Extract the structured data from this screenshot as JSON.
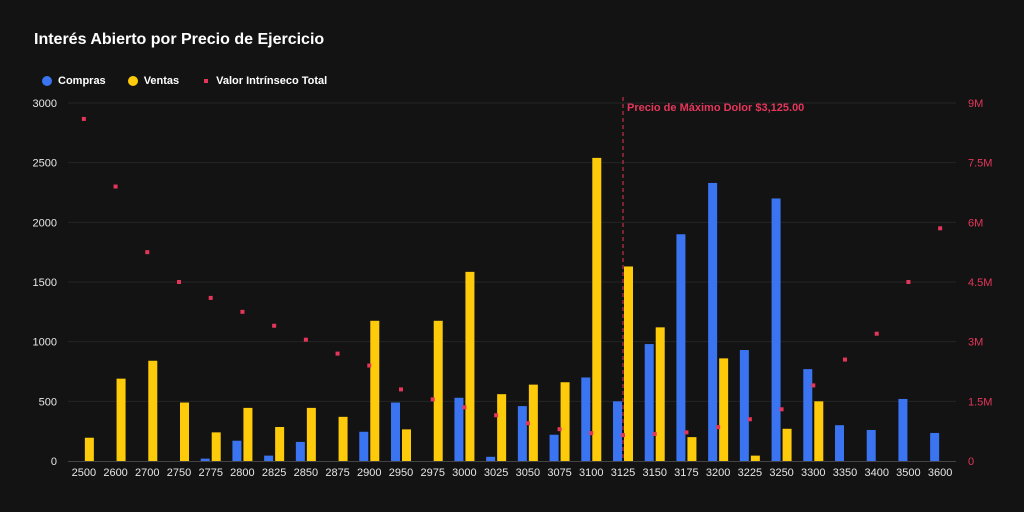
{
  "chart_data": {
    "type": "bar",
    "title": "Interés Abierto por Precio de Ejercicio",
    "categories": [
      "2500",
      "2600",
      "2700",
      "2750",
      "2775",
      "2800",
      "2825",
      "2850",
      "2875",
      "2900",
      "2950",
      "2975",
      "3000",
      "3025",
      "3050",
      "3075",
      "3100",
      "3125",
      "3150",
      "3175",
      "3200",
      "3225",
      "3250",
      "3300",
      "3350",
      "3400",
      "3500",
      "3600"
    ],
    "series": [
      {
        "name": "Compras",
        "color": "#3b74f0",
        "axis": "left",
        "values": [
          0,
          0,
          0,
          0,
          20,
          170,
          45,
          160,
          0,
          245,
          490,
          0,
          530,
          35,
          460,
          220,
          700,
          500,
          980,
          1900,
          2330,
          930,
          2200,
          770,
          300,
          260,
          520,
          235
        ]
      },
      {
        "name": "Ventas",
        "color": "#fecb0b",
        "axis": "left",
        "values": [
          195,
          690,
          840,
          490,
          240,
          445,
          285,
          445,
          370,
          1175,
          265,
          1175,
          1585,
          560,
          640,
          660,
          2540,
          1630,
          1120,
          200,
          860,
          45,
          270,
          500,
          0,
          0,
          0,
          0
        ]
      },
      {
        "name": "Valor Intrínseco Total",
        "color": "#e5365a",
        "axis": "right",
        "kind": "point",
        "values": [
          8600000,
          6900000,
          5250000,
          4500000,
          4100000,
          3750000,
          3400000,
          3050000,
          2700000,
          2400000,
          1800000,
          1550000,
          1350000,
          1150000,
          950000,
          800000,
          700000,
          650000,
          680000,
          720000,
          850000,
          1050000,
          1300000,
          1900000,
          2550000,
          3200000,
          4500000,
          5850000
        ]
      }
    ],
    "y_left": {
      "min": 0,
      "max": 3000,
      "ticks": [
        "0",
        "500",
        "1000",
        "1500",
        "2000",
        "2500",
        "3000"
      ]
    },
    "y_right": {
      "min": 0,
      "max": 9000000,
      "ticks": [
        "0",
        "1.5M",
        "3M",
        "4.5M",
        "6M",
        "7.5M",
        "9M"
      ]
    },
    "reference_line": {
      "category": "3125",
      "label": "Precio de Máximo Dolor $3,125.00",
      "color": "#e5365a"
    },
    "grid": true,
    "legend_position": "top-left"
  },
  "colors": {
    "background": "#131313",
    "grid": "#242424",
    "tick_text": "#e6e6e6",
    "right_axis_text": "#e5365a",
    "axis_line": "#444444"
  }
}
